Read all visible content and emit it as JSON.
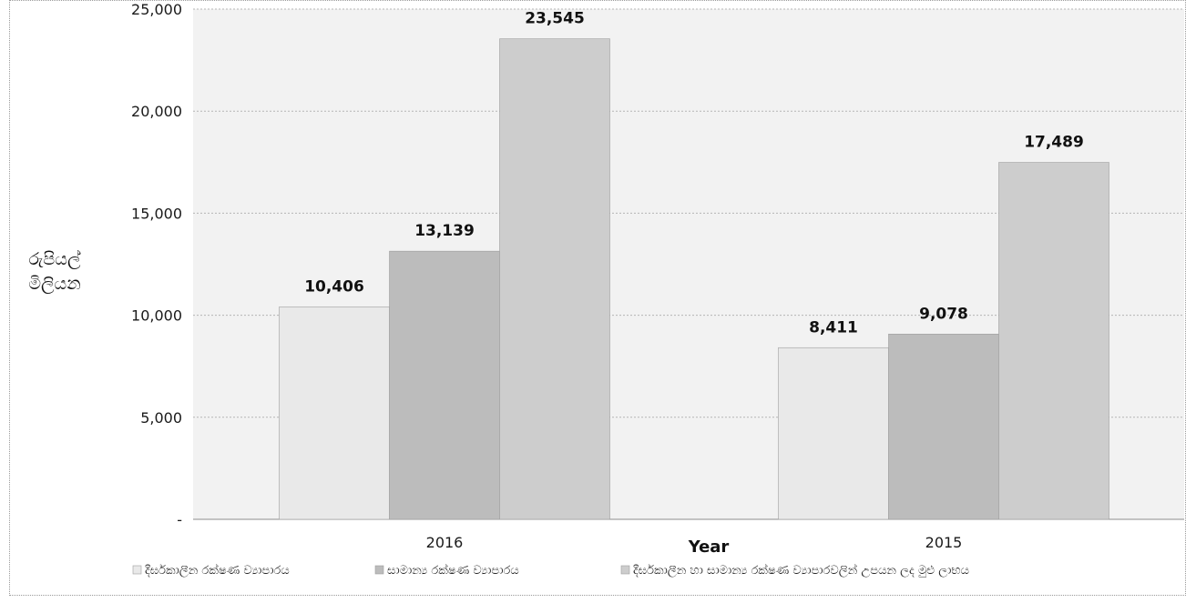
{
  "chart_data": {
    "type": "bar",
    "categories": [
      "2016",
      "2015"
    ],
    "series": [
      {
        "name": "දීර්ඝකාලීන රක්ෂණ ව්‍යාපාරය",
        "values": [
          10406,
          8411
        ],
        "labels": [
          "10,406",
          "8,411"
        ],
        "color": "#e9e9e9"
      },
      {
        "name": "සාමාන්‍ය රක්ෂණ ව්‍යාපාරය",
        "values": [
          13139,
          9078
        ],
        "labels": [
          "13,139",
          "9,078"
        ],
        "color": "#bcbcbc"
      },
      {
        "name": "දීර්ඝකාලීන හා සාමාන්‍ය රක්ෂණ ව්‍යාපාරවලින් උපයන ලද මුළු ලාභය",
        "values": [
          23545,
          17489
        ],
        "labels": [
          "23,545",
          "17,489"
        ],
        "color": "#cdcdcd"
      }
    ],
    "yticks": [
      0,
      5000,
      10000,
      15000,
      20000,
      25000
    ],
    "ytick_labels": [
      "-",
      "5,000",
      "10,000",
      "15,000",
      "20,000",
      "25,000"
    ],
    "ylim": [
      0,
      25000
    ],
    "xlabel": "Year",
    "ylabel": [
      "රුපියල්",
      "මිලියන"
    ],
    "grid": true,
    "legend_position": "bottom",
    "plot_background": "#f2f2f2"
  }
}
